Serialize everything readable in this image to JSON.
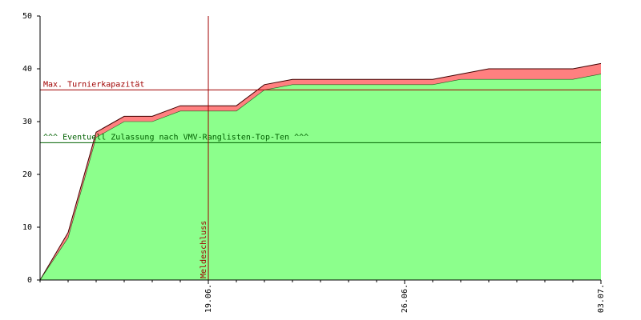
{
  "chart_data": {
    "type": "stacked-area",
    "categories": [
      null,
      null,
      null,
      null,
      null,
      null,
      "19.06.",
      null,
      null,
      null,
      null,
      null,
      null,
      "26.06.",
      null,
      null,
      null,
      null,
      null,
      null,
      "03.07."
    ],
    "series": [
      {
        "color": "#8cff8c",
        "values": [
          0,
          8,
          27,
          30,
          30,
          32,
          32,
          32,
          36,
          37,
          37,
          37,
          37,
          37,
          37,
          38,
          38,
          38,
          38,
          38,
          39
        ]
      },
      {
        "color": "#ff8080",
        "values": [
          0,
          1,
          1,
          1,
          1,
          1,
          1,
          1,
          1,
          1,
          1,
          1,
          1,
          1,
          1,
          1,
          2,
          2,
          2,
          2,
          2
        ]
      }
    ],
    "ylim": [
      0,
      50
    ],
    "yticks": [
      0,
      10,
      20,
      30,
      40,
      50
    ],
    "hlines": [
      {
        "text": "Max. Turnierkapazität",
        "value": 36,
        "color": "#a00000"
      },
      {
        "text": "^^^ Eventuell Zulassung nach VMV-Ranglisten-Top-Ten ^^^",
        "value": 26,
        "color": "#006000"
      }
    ],
    "vlines": [
      {
        "text": "Meldeschluss",
        "x": "19.06.",
        "color": "#a00000"
      }
    ]
  }
}
